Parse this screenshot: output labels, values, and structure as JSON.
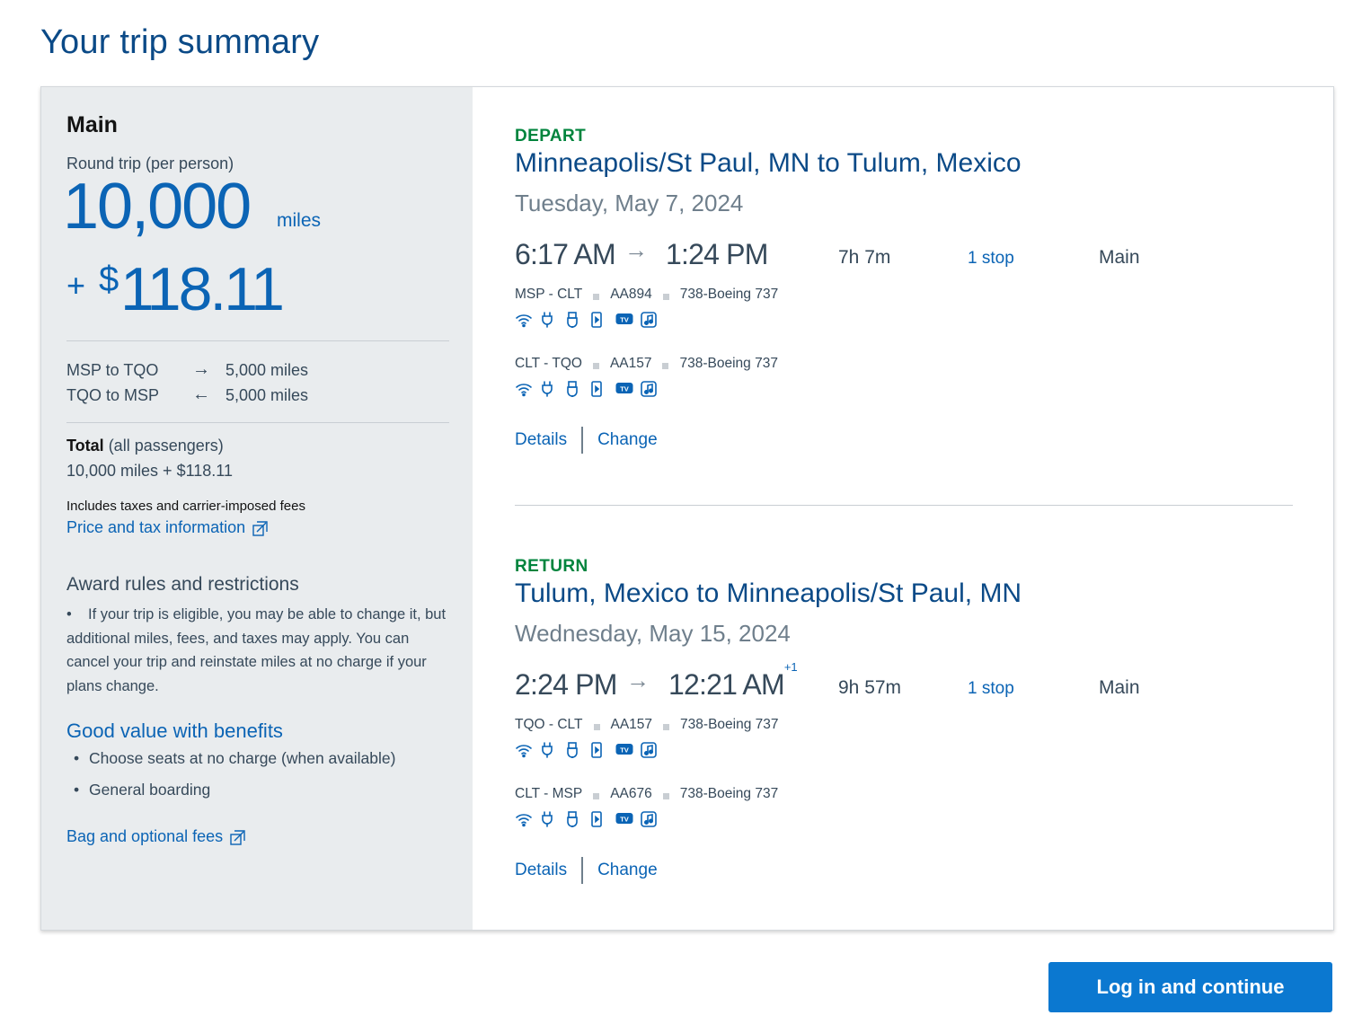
{
  "page": {
    "title": "Your trip summary"
  },
  "summary": {
    "cabin": "Main",
    "trip_type": "Round trip (per person)",
    "miles": "10,000",
    "miles_unit": "miles",
    "plus": "+",
    "currency_symbol": "$",
    "price": "118.11",
    "segments": [
      {
        "route": "MSP to TQO",
        "arrow": "→",
        "miles": "5,000 miles"
      },
      {
        "route": "TQO to MSP",
        "arrow": "←",
        "miles": "5,000 miles"
      }
    ],
    "total_label": "Total",
    "total_qualifier": "(all passengers)",
    "total_value": "10,000 miles + $118.11",
    "includes_note": "Includes taxes and carrier-imposed fees",
    "price_tax_link": "Price and tax information",
    "award_heading": "Award rules and restrictions",
    "award_text": "If your trip is eligible, you may be able to change it, but additional miles, fees, and taxes may apply. You can cancel your trip and reinstate miles at no charge if your plans change.",
    "benefits_heading": "Good value with benefits",
    "benefits": [
      "Choose seats at no charge (when available)",
      "General boarding"
    ],
    "bag_link": "Bag and optional fees"
  },
  "legs": [
    {
      "label": "DEPART",
      "route": "Minneapolis/St Paul, MN to Tulum, Mexico",
      "date": "Tuesday, May 7, 2024",
      "depart_time": "6:17 AM",
      "arrive_time": "1:24 PM",
      "arrive_day_offset": "",
      "duration": "7h 7m",
      "stops": "1 stop",
      "cabin": "Main",
      "segments": [
        {
          "route": "MSP - CLT",
          "flight": "AA894",
          "aircraft": "738-Boeing 737"
        },
        {
          "route": "CLT - TQO",
          "flight": "AA157",
          "aircraft": "738-Boeing 737"
        }
      ],
      "details_link": "Details",
      "change_link": "Change"
    },
    {
      "label": "RETURN",
      "route": "Tulum, Mexico to Minneapolis/St Paul, MN",
      "date": "Wednesday, May 15, 2024",
      "depart_time": "2:24 PM",
      "arrive_time": "12:21 AM",
      "arrive_day_offset": "+1",
      "duration": "9h 57m",
      "stops": "1 stop",
      "cabin": "Main",
      "segments": [
        {
          "route": "TQO - CLT",
          "flight": "AA157",
          "aircraft": "738-Boeing 737"
        },
        {
          "route": "CLT - MSP",
          "flight": "AA676",
          "aircraft": "738-Boeing 737"
        }
      ],
      "details_link": "Details",
      "change_link": "Change"
    }
  ],
  "amenity_icons": [
    "wifi-icon",
    "power-outlet-icon",
    "usb-icon",
    "mobile-entertainment-icon",
    "tv-icon",
    "music-icon"
  ],
  "actions": {
    "continue": "Log in and continue"
  },
  "colors": {
    "brand_blue": "#0b64b5",
    "title_blue": "#0b4a87",
    "leg_green": "#00843d",
    "cta_blue": "#0b78d0",
    "panel_gray": "#e9ecee"
  }
}
